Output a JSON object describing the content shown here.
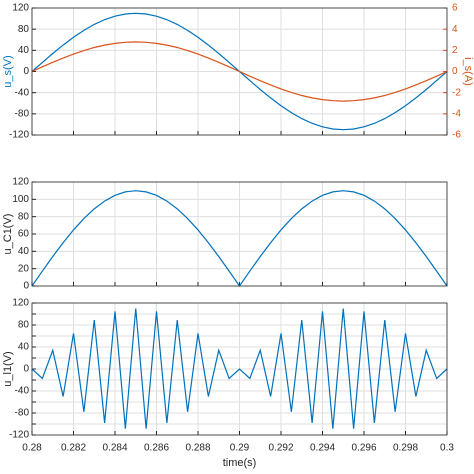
{
  "chart_data": [
    {
      "type": "line",
      "ylabel": "u_s(V)",
      "ylabel_color": "#0072bd",
      "y2label": "i_s(A)",
      "y2label_color": "#d95319",
      "grid": true,
      "x": [
        0.28,
        0.2805,
        0.281,
        0.2815,
        0.282,
        0.2825,
        0.283,
        0.2835,
        0.284,
        0.2845,
        0.285,
        0.2855,
        0.286,
        0.2865,
        0.287,
        0.2875,
        0.288,
        0.2885,
        0.289,
        0.2895,
        0.29,
        0.2905,
        0.291,
        0.2915,
        0.292,
        0.2925,
        0.293,
        0.2935,
        0.294,
        0.2945,
        0.295,
        0.2955,
        0.296,
        0.2965,
        0.297,
        0.2975,
        0.298,
        0.2985,
        0.299,
        0.2995,
        0.3
      ],
      "xlim": [
        0.28,
        0.3
      ],
      "xticks": [
        0.28,
        0.282,
        0.284,
        0.286,
        0.288,
        0.29,
        0.292,
        0.294,
        0.296,
        0.298,
        0.3
      ],
      "ylim": [
        -120,
        120
      ],
      "yticks": [
        -120,
        -80,
        -40,
        0,
        40,
        80,
        120
      ],
      "y2lim": [
        -6,
        6
      ],
      "y2ticks": [
        -6,
        -4,
        -2,
        0,
        2,
        4,
        6
      ],
      "series": [
        {
          "name": "u_s",
          "color": "#0072bd",
          "values": [
            0,
            17.2,
            34,
            49.9,
            64.7,
            77.8,
            89,
            98,
            104.6,
            108.6,
            110,
            108.6,
            104.6,
            98,
            89,
            77.8,
            64.7,
            49.9,
            34,
            17.2,
            0,
            -17.2,
            -34,
            -49.9,
            -64.7,
            -77.8,
            -89,
            -98,
            -104.6,
            -108.6,
            -110,
            -108.6,
            -104.6,
            -98,
            -89,
            -77.8,
            -64.7,
            -49.9,
            -34,
            -17.2,
            0
          ]
        },
        {
          "name": "i_s",
          "color": "#d95319",
          "axis": "y2",
          "values": [
            0,
            0.44,
            0.87,
            1.27,
            1.65,
            1.98,
            2.27,
            2.49,
            2.66,
            2.76,
            2.8,
            2.76,
            2.66,
            2.49,
            2.27,
            1.98,
            1.65,
            1.27,
            0.87,
            0.44,
            0,
            -0.44,
            -0.87,
            -1.27,
            -1.65,
            -1.98,
            -2.27,
            -2.49,
            -2.66,
            -2.76,
            -2.8,
            -2.76,
            -2.66,
            -2.49,
            -2.27,
            -1.98,
            -1.65,
            -1.27,
            -0.87,
            -0.44,
            0
          ]
        }
      ]
    },
    {
      "type": "line",
      "ylabel": "u_C1(V)",
      "ylabel_color": "#262626",
      "grid": true,
      "x": [
        0.28,
        0.2805,
        0.281,
        0.2815,
        0.282,
        0.2825,
        0.283,
        0.2835,
        0.284,
        0.2845,
        0.285,
        0.2855,
        0.286,
        0.2865,
        0.287,
        0.2875,
        0.288,
        0.2885,
        0.289,
        0.2895,
        0.29,
        0.2905,
        0.291,
        0.2915,
        0.292,
        0.2925,
        0.293,
        0.2935,
        0.294,
        0.2945,
        0.295,
        0.2955,
        0.296,
        0.2965,
        0.297,
        0.2975,
        0.298,
        0.2985,
        0.299,
        0.2995,
        0.3
      ],
      "xlim": [
        0.28,
        0.3
      ],
      "xticks": [
        0.28,
        0.282,
        0.284,
        0.286,
        0.288,
        0.29,
        0.292,
        0.294,
        0.296,
        0.298,
        0.3
      ],
      "ylim": [
        0,
        120
      ],
      "yticks": [
        0,
        20,
        40,
        60,
        80,
        100,
        120
      ],
      "series": [
        {
          "name": "u_C1",
          "color": "#0072bd",
          "values": [
            0,
            17.2,
            34,
            49.9,
            64.7,
            77.8,
            89,
            98,
            104.6,
            108.6,
            110,
            108.6,
            104.6,
            98,
            89,
            77.8,
            64.7,
            49.9,
            34,
            17.2,
            0,
            17.2,
            34,
            49.9,
            64.7,
            77.8,
            89,
            98,
            104.6,
            108.6,
            110,
            108.6,
            104.6,
            98,
            89,
            77.8,
            64.7,
            49.9,
            34,
            17.2,
            0
          ]
        }
      ]
    },
    {
      "type": "line",
      "ylabel": "u_l1(V)",
      "ylabel_color": "#262626",
      "xlabel": "time(s)",
      "grid": true,
      "x": [
        0.28,
        0.2805,
        0.281,
        0.2815,
        0.282,
        0.2825,
        0.283,
        0.2835,
        0.284,
        0.2845,
        0.285,
        0.2855,
        0.286,
        0.2865,
        0.287,
        0.2875,
        0.288,
        0.2885,
        0.289,
        0.2895,
        0.29,
        0.2905,
        0.291,
        0.2915,
        0.292,
        0.2925,
        0.293,
        0.2935,
        0.294,
        0.2945,
        0.295,
        0.2955,
        0.296,
        0.2965,
        0.297,
        0.2975,
        0.298,
        0.2985,
        0.299,
        0.2995,
        0.3
      ],
      "xlim": [
        0.28,
        0.3
      ],
      "xticks": [
        0.28,
        0.282,
        0.284,
        0.286,
        0.288,
        0.29,
        0.292,
        0.294,
        0.296,
        0.298,
        0.3
      ],
      "ylim": [
        -120,
        120
      ],
      "yticks": [
        -120,
        -100,
        -80,
        -60,
        -40,
        -20,
        0,
        20,
        40,
        60,
        80,
        100,
        120
      ],
      "series": [
        {
          "name": "u_l1",
          "color": "#0072bd",
          "values": [
            0,
            -17.2,
            34,
            -49.9,
            64.7,
            -77.8,
            89,
            -98,
            104.6,
            -108.6,
            110,
            -108.6,
            104.6,
            -98,
            89,
            -77.8,
            64.7,
            -49.9,
            34,
            -17.2,
            0,
            -17.2,
            34,
            -49.9,
            64.7,
            -77.8,
            89,
            -98,
            104.6,
            -108.6,
            110,
            -108.6,
            104.6,
            -98,
            89,
            -77.8,
            64.7,
            -49.9,
            34,
            -17.2,
            0
          ]
        }
      ]
    }
  ]
}
